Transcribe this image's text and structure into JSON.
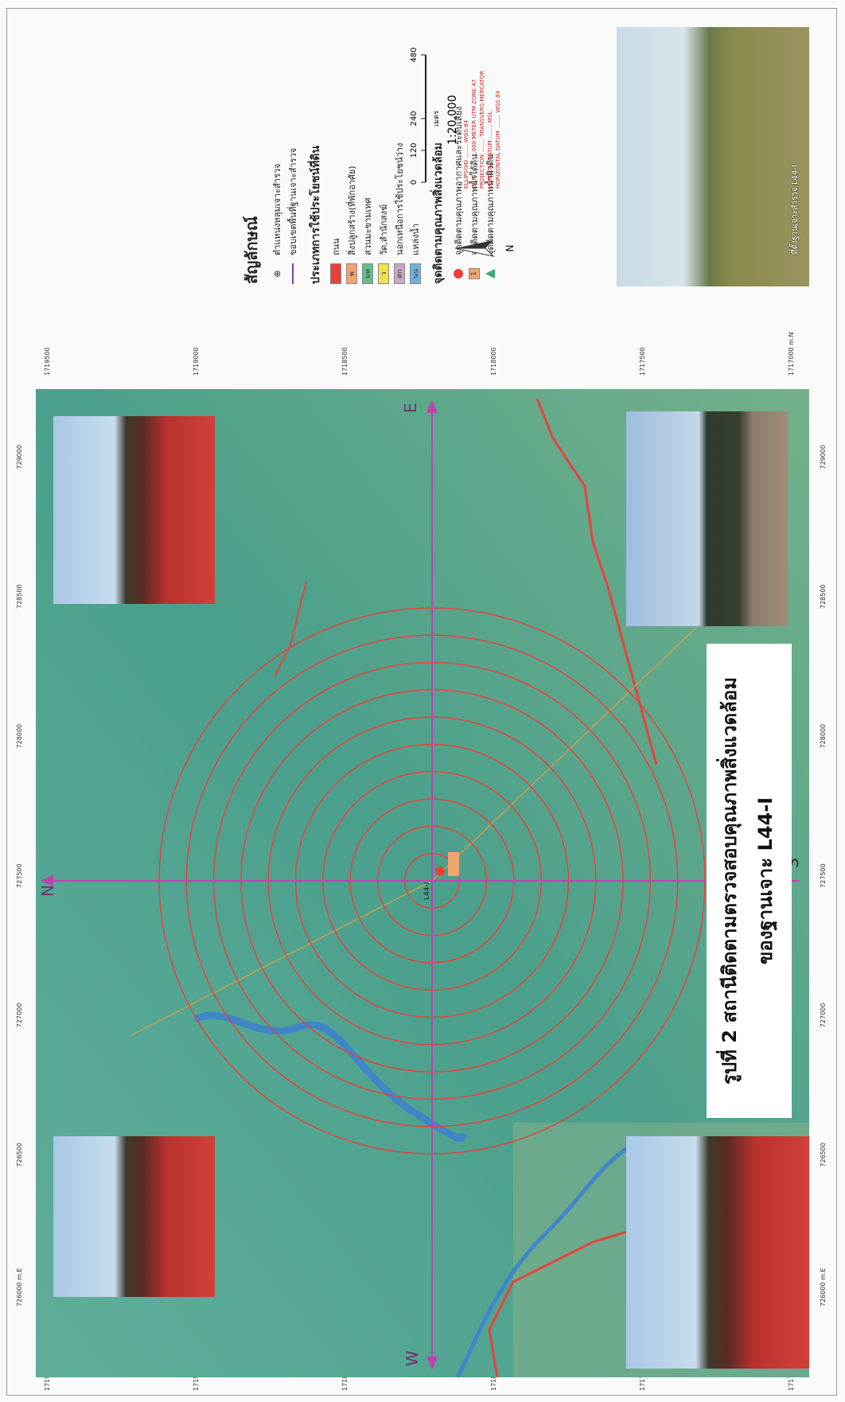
{
  "map": {
    "title_line1": "รูปที่ 2 สถานีติดตามตรวจสอบคุณภาพสิ่งแวดล้อม",
    "title_line2": "ของฐานเจาะ L44-I",
    "directions": {
      "north": "N",
      "east": "E",
      "south": "S",
      "west": "W"
    },
    "site_label": "L44-I",
    "eastings": [
      "726000 m.E",
      "726500",
      "727000",
      "727500",
      "728000",
      "728500",
      "729000"
    ],
    "northings": [
      "1719500",
      "1719000",
      "1718500",
      "1718000",
      "1717500",
      "1717000 m.N"
    ]
  },
  "legend": {
    "title": "สัญลักษณ์",
    "drill_hole": "ตำแหน่งหลุมเจาะสำรวจ",
    "boundary": "ขอบเขตพื้นที่ฐานเจาะสำรวจ",
    "landuse_title": "ประเภทการใช้ประโยชน์ที่ดิน",
    "landuse": [
      {
        "code": "",
        "label": "ถนน",
        "color": "#e8413a"
      },
      {
        "code": "พ",
        "label": "สิ่งปลูกสร้าง(ที่พักอาศัย)",
        "color": "#f2a46e"
      },
      {
        "code": "มท",
        "label": "สวนมะขามเทศ",
        "color": "#63c08e"
      },
      {
        "code": "ว",
        "label": "วัด,สำนักสงฆ์",
        "color": "#f2e24a"
      },
      {
        "code": "ศก",
        "label": "นอกเหนือการใช้ประโยชน์ว่าง",
        "color": "#c7a9c4"
      },
      {
        "code": "นน",
        "label": "แหล่งน้ำ",
        "color": "#6fb2e2"
      }
    ],
    "monitoring_title": "จุดติดตามคุณภาพสิ่งแวดล้อม",
    "monitoring": [
      "จุดติดตามคุณภาพอากาศและระดับเสียง",
      "จุดติดตามคุณภาพน้ำใต้ดิน",
      "จุดติดตามคุณภาพน้ำผิวดิน"
    ],
    "groundwater_code": "1",
    "scale": {
      "unit": "เมตร",
      "ratio": "1:20,000",
      "ticks": [
        0,
        120,
        240,
        480
      ]
    },
    "north": "N",
    "info": [
      "ELLIPSOID ........ WGS 84",
      "GRID ........ 1,000 METER UTM ZONE 47",
      "PROJECTION ........ TRANSVERS MERCATOR",
      "VERTICAL DATUM ........ MSL",
      "HORIZONTAL DATUM ........ WGS 84"
    ],
    "photo_caption": "ที่ตั้งฐานเจาะสำรวจ L44-I"
  }
}
